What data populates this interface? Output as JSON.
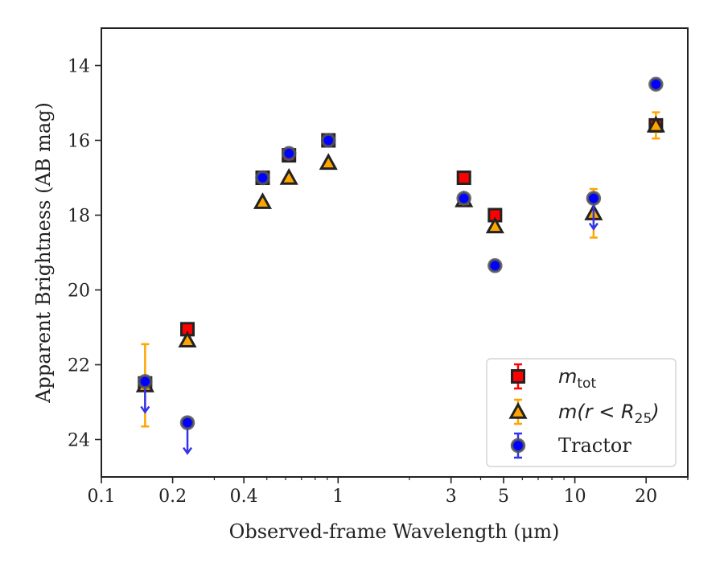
{
  "chart_data": {
    "type": "scatter",
    "xlabel": "Observed-frame Wavelength (μm)",
    "ylabel": "Apparent Brightness (AB mag)",
    "xscale": "log",
    "xlim": [
      0.1,
      30
    ],
    "ylim": [
      25.0,
      13.0
    ],
    "y_inverted": true,
    "x_ticks": [
      {
        "value": 0.1,
        "label": "0.1"
      },
      {
        "value": 0.2,
        "label": "0.2"
      },
      {
        "value": 0.4,
        "label": "0.4"
      },
      {
        "value": 1,
        "label": "1"
      },
      {
        "value": 3,
        "label": "3"
      },
      {
        "value": 5,
        "label": "5"
      },
      {
        "value": 10,
        "label": "10"
      },
      {
        "value": 20,
        "label": "20"
      }
    ],
    "y_ticks": [
      {
        "value": 14,
        "label": "14"
      },
      {
        "value": 16,
        "label": "16"
      },
      {
        "value": 18,
        "label": "18"
      },
      {
        "value": 20,
        "label": "20"
      },
      {
        "value": 22,
        "label": "22"
      },
      {
        "value": 24,
        "label": "24"
      }
    ],
    "legend_position": "lower-right",
    "series": [
      {
        "name": "m_tot",
        "legend_main": "m",
        "legend_sub": "tot",
        "marker": "square",
        "fill": "#ff0000",
        "edge": "#222222",
        "errcolor": "#ff0000",
        "points": [
          {
            "x": 0.153,
            "y": 22.5
          },
          {
            "x": 0.231,
            "y": 21.05
          },
          {
            "x": 0.48,
            "y": 17.0
          },
          {
            "x": 0.62,
            "y": 16.4
          },
          {
            "x": 0.91,
            "y": 16.0
          },
          {
            "x": 3.4,
            "y": 17.0
          },
          {
            "x": 4.6,
            "y": 18.0
          },
          {
            "x": 22.0,
            "y": 15.6,
            "err": 0.15
          }
        ]
      },
      {
        "name": "m(r < R25)",
        "legend_main": "m(r < R",
        "legend_sub": "25",
        "legend_tail": ")",
        "marker": "triangle",
        "fill": "#ffa500",
        "edge": "#222222",
        "errcolor": "#ffa500",
        "points": [
          {
            "x": 0.153,
            "y": 22.55,
            "err": 1.1
          },
          {
            "x": 0.231,
            "y": 21.35
          },
          {
            "x": 0.48,
            "y": 17.65
          },
          {
            "x": 0.62,
            "y": 17.0
          },
          {
            "x": 0.91,
            "y": 16.6
          },
          {
            "x": 3.4,
            "y": 17.6
          },
          {
            "x": 4.6,
            "y": 18.3
          },
          {
            "x": 12.0,
            "y": 17.95,
            "err": 0.65
          },
          {
            "x": 22.0,
            "y": 15.6,
            "err": 0.35
          }
        ]
      },
      {
        "name": "Tractor",
        "legend_main": "Tractor",
        "marker": "circle",
        "fill": "#0000ff",
        "edge": "#555555",
        "errcolor": "#3333ee",
        "points": [
          {
            "x": 0.153,
            "y": 22.45,
            "upper_limit": true
          },
          {
            "x": 0.231,
            "y": 23.55,
            "upper_limit": true
          },
          {
            "x": 0.48,
            "y": 17.0
          },
          {
            "x": 0.62,
            "y": 16.35
          },
          {
            "x": 0.91,
            "y": 16.0
          },
          {
            "x": 3.4,
            "y": 17.55
          },
          {
            "x": 4.6,
            "y": 19.35
          },
          {
            "x": 12.0,
            "y": 17.55,
            "upper_limit": true
          },
          {
            "x": 22.0,
            "y": 14.5
          }
        ]
      }
    ]
  }
}
